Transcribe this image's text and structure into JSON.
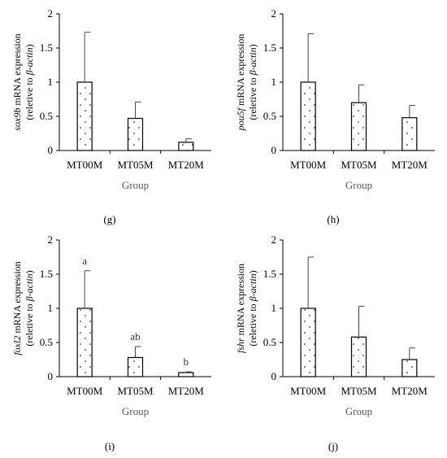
{
  "chart_data": [
    {
      "type": "bar",
      "panel": "",
      "gene": "sox9b",
      "ylabel_parts": [
        "sox9b",
        " mRNA expression"
      ],
      "ylabel_line2_parts": [
        "(reletive to ",
        "β-actin",
        ")"
      ],
      "xlabel": "Group",
      "categories": [
        "MT00M",
        "MT05M",
        "MT20M"
      ],
      "values": [
        1.0,
        0.47,
        0.12
      ],
      "errors": [
        0.73,
        0.24,
        0.05
      ],
      "annotations": [
        "",
        "",
        ""
      ],
      "yticks": [
        "0",
        "0.5",
        "1",
        "1.5",
        "2"
      ],
      "ylim": [
        0,
        2
      ],
      "grid": false
    },
    {
      "type": "bar",
      "panel": "",
      "gene": "pou5f",
      "ylabel_parts": [
        "pou5f",
        " mRNA expression"
      ],
      "ylabel_line2_parts": [
        "(reletive to ",
        "β-actin",
        ")"
      ],
      "xlabel": "Group",
      "categories": [
        "MT00M",
        "MT05M",
        "MT20M"
      ],
      "values": [
        1.0,
        0.7,
        0.48
      ],
      "errors": [
        0.71,
        0.26,
        0.18
      ],
      "annotations": [
        "",
        "",
        ""
      ],
      "yticks": [
        "0",
        "0.5",
        "1",
        "1.5",
        "2"
      ],
      "ylim": [
        0,
        2
      ],
      "grid": false
    },
    {
      "type": "bar",
      "panel": "(i)",
      "gene": "foxl2",
      "ylabel_parts": [
        "foxl2",
        " mRNA expression"
      ],
      "ylabel_line2_parts": [
        "(reletive to ",
        "β-actin",
        ")"
      ],
      "xlabel": "Group",
      "categories": [
        "MT00M",
        "MT05M",
        "MT20M"
      ],
      "values": [
        1.0,
        0.28,
        0.06
      ],
      "errors": [
        0.55,
        0.16,
        0.01
      ],
      "annotations": [
        "a",
        "ab",
        "b"
      ],
      "yticks": [
        "0",
        "0.5",
        "1",
        "1.5",
        "2"
      ],
      "ylim": [
        0,
        2
      ],
      "grid": false
    },
    {
      "type": "bar",
      "panel": "(j)",
      "gene": "fshr",
      "ylabel_parts": [
        "fshr",
        " mRNA expression"
      ],
      "ylabel_line2_parts": [
        "(reletive to ",
        "β-actin",
        ")"
      ],
      "xlabel": "Group",
      "categories": [
        "MT00M",
        "MT05M",
        "MT20M"
      ],
      "values": [
        1.0,
        0.58,
        0.25
      ],
      "errors": [
        0.75,
        0.45,
        0.17
      ],
      "annotations": [
        "",
        "",
        ""
      ],
      "yticks": [
        "0",
        "0.5",
        "1",
        "1.5",
        "2"
      ],
      "ylim": [
        0,
        2
      ],
      "grid": false
    }
  ],
  "panel_labels": [
    "(g)",
    "(h)",
    "(i)",
    "(j)"
  ],
  "colors": {
    "axis": "#000000",
    "xlabel": "#595959",
    "bar_fill": "#ffffff",
    "bar_stroke": "#000000",
    "dots": "#000000"
  }
}
